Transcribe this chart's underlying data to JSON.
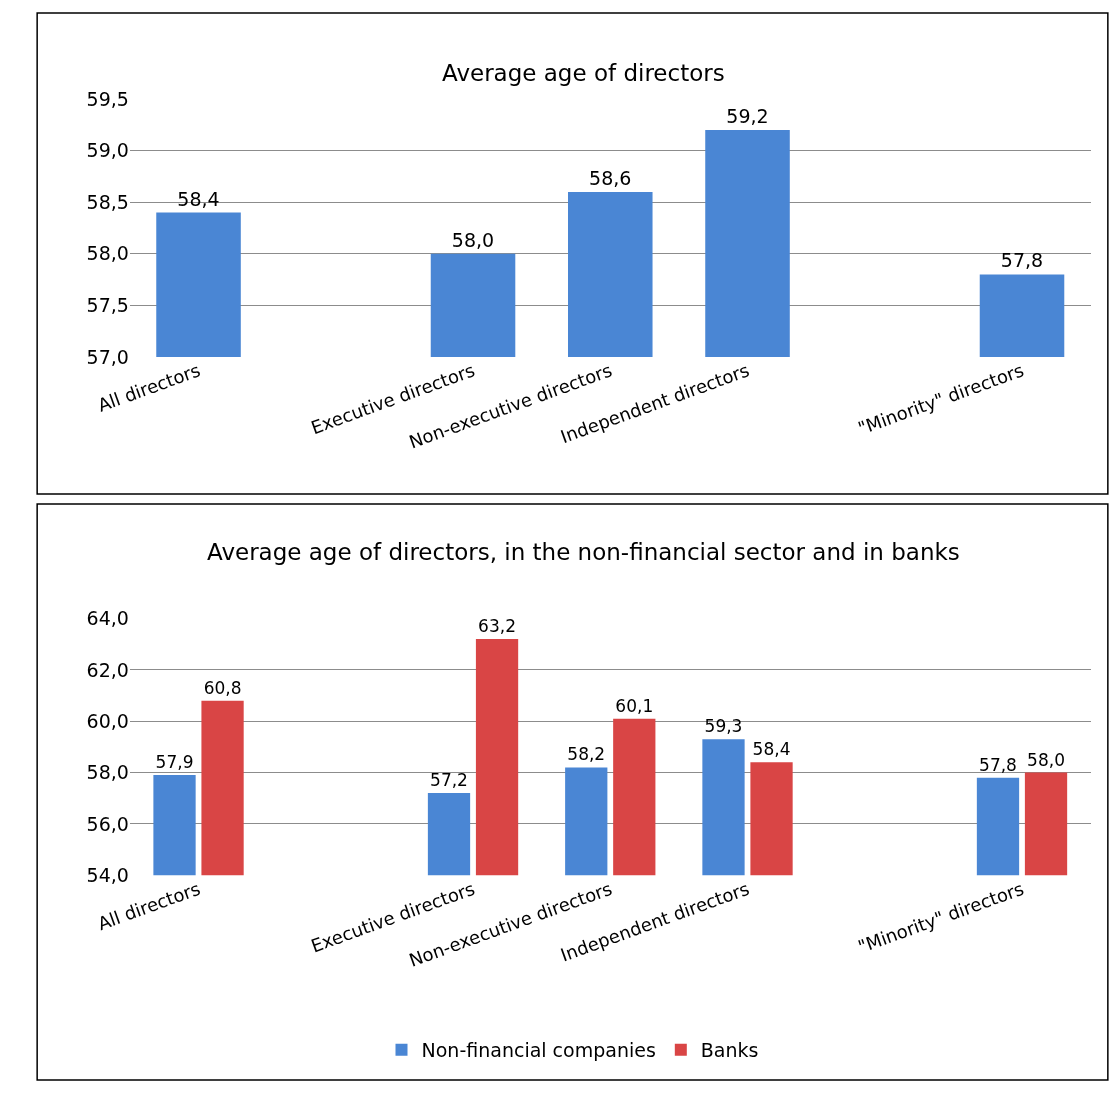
{
  "chart_data": [
    {
      "type": "bar",
      "title": "Average age of directors",
      "categories": [
        "All directors",
        null,
        "Executive directors",
        "Non-executive directors",
        "Independent directors",
        null,
        "\"Minority\" directors"
      ],
      "series": [
        {
          "color": "#4a86d4",
          "values": [
            58.4,
            null,
            58.0,
            58.6,
            59.2,
            null,
            57.8
          ],
          "value_labels": [
            "58,4",
            null,
            "58,0",
            "58,6",
            "59,2",
            null,
            "57,8"
          ]
        }
      ],
      "ylim": [
        57,
        59.5
      ],
      "yticks": [
        {
          "value": 57,
          "label": "57,0"
        },
        {
          "value": 57.5,
          "label": "57,5"
        },
        {
          "value": 58,
          "label": "58,0"
        },
        {
          "value": 58.5,
          "label": "58,5"
        },
        {
          "value": 59,
          "label": "59,0"
        },
        {
          "value": 59.5,
          "label": "59,5"
        }
      ],
      "grid": "y",
      "legend": false
    },
    {
      "type": "bar",
      "title": "Average age of directors, in the non-financial sector and in banks",
      "categories": [
        "All directors",
        null,
        "Executive directors",
        "Non-executive directors",
        "Independent directors",
        null,
        "\"Minority\" directors"
      ],
      "series": [
        {
          "name": "Non-financial companies",
          "color": "#4a86d4",
          "values": [
            57.9,
            null,
            57.2,
            58.2,
            59.3,
            null,
            57.8
          ],
          "value_labels": [
            "57,9",
            null,
            "57,2",
            "58,2",
            "59,3",
            null,
            "57,8"
          ]
        },
        {
          "name": "Banks",
          "color": "#d94545",
          "values": [
            60.8,
            null,
            63.2,
            60.1,
            58.4,
            null,
            58.0
          ],
          "value_labels": [
            "60,8",
            null,
            "63,2",
            "60,1",
            "58,4",
            null,
            "58,0"
          ]
        }
      ],
      "ylim": [
        54,
        64
      ],
      "yticks": [
        {
          "value": 54,
          "label": "54,0"
        },
        {
          "value": 56,
          "label": "56,0"
        },
        {
          "value": 58,
          "label": "58,0"
        },
        {
          "value": 60,
          "label": "60,0"
        },
        {
          "value": 62,
          "label": "62,0"
        },
        {
          "value": 64,
          "label": "64,0"
        }
      ],
      "grid": "y",
      "legend": "bottom"
    }
  ]
}
